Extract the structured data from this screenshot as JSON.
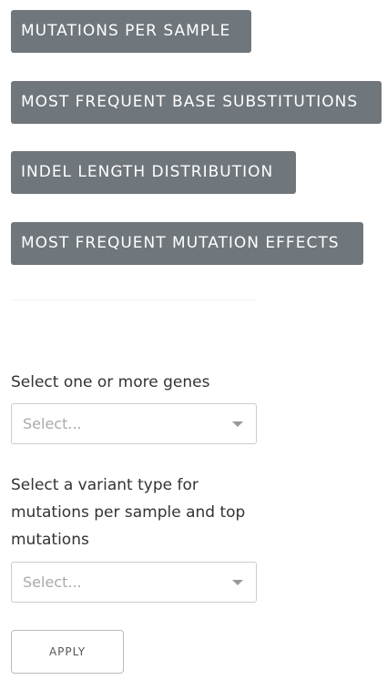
{
  "plot_buttons": [
    {
      "label": "MUTATIONS PER SAMPLE"
    },
    {
      "label": "MOST FREQUENT BASE SUBSTITUTIONS"
    },
    {
      "label": "INDEL LENGTH DISTRIBUTION"
    },
    {
      "label": "MOST FREQUENT MUTATION EFFECTS"
    }
  ],
  "genes_filter": {
    "label": "Select one or more genes",
    "placeholder": "Select..."
  },
  "variant_filter": {
    "label": "Select a variant type for mutations per sample and top mutations",
    "placeholder": "Select..."
  },
  "apply_button": {
    "label": "APPLY"
  },
  "colors": {
    "button_background": "#6f767c",
    "button_text": "#ffffff",
    "select_border": "#cccccc",
    "placeholder_text": "#aaaaaa"
  },
  "icons": {
    "select_arrow": "chevron-down-icon"
  }
}
